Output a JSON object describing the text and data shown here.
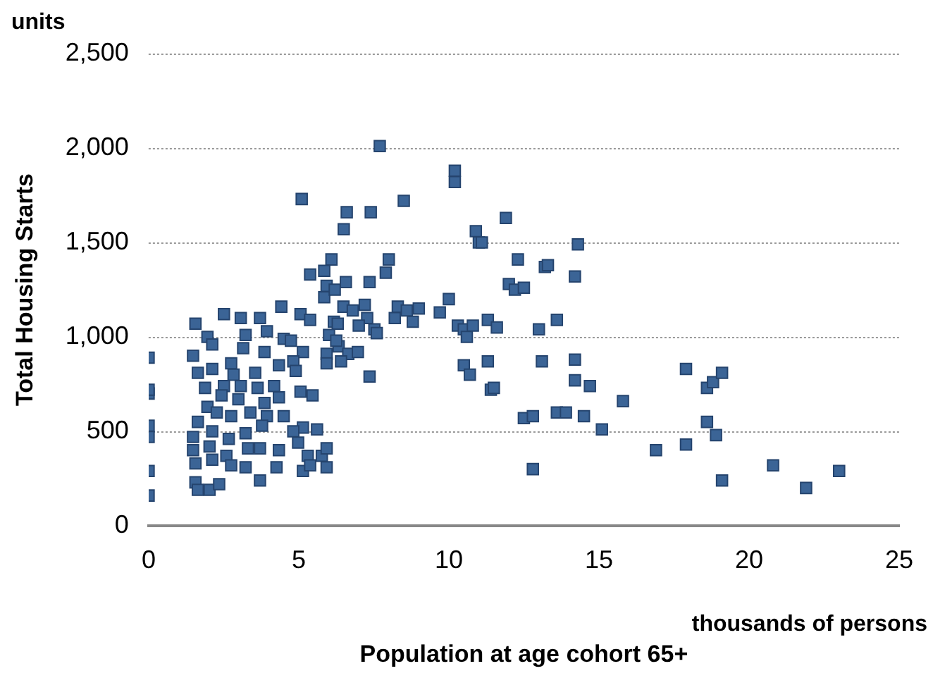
{
  "chart_data": {
    "type": "scatter",
    "xlabel": "Population at age cohort 65+",
    "ylabel": "Total Housing Starts",
    "annotations": [
      "units",
      "thousands of persons"
    ],
    "xlim": [
      0,
      25
    ],
    "xticks": [
      0,
      5,
      10,
      15,
      20,
      25
    ],
    "ylim": [
      0,
      2500
    ],
    "yticks": [
      {
        "value": 0,
        "label": "0"
      },
      {
        "value": 500,
        "label": "500"
      },
      {
        "value": 1000,
        "label": "1,000"
      },
      {
        "value": 1500,
        "label": "1,500"
      },
      {
        "value": 2000,
        "label": "2,000"
      },
      {
        "value": 2500,
        "label": "2,500"
      }
    ],
    "grid": "y",
    "marker": "square",
    "legend": false,
    "series": [
      {
        "color": "#3b6496",
        "x": [
          0,
          0,
          0,
          0,
          0,
          0,
          0,
          1.56,
          2.51,
          3.07,
          3.71,
          4.42,
          5.06,
          5.38,
          1.96,
          3.23,
          3.94,
          4.5,
          4.74,
          5.14,
          5.93,
          1.48,
          2.12,
          2.75,
          3.15,
          3.86,
          4.82,
          5.93,
          6.33,
          6.65,
          6.97,
          1.64,
          2.12,
          2.83,
          3.55,
          4.34,
          4.9,
          1.88,
          2.51,
          3.07,
          3.63,
          4.18,
          5.06,
          5.46,
          1.96,
          2.43,
          2.99,
          3.86,
          4.34,
          1.64,
          2.27,
          2.75,
          3.39,
          3.94,
          4.5,
          5.14,
          5.61,
          1.48,
          2.12,
          2.67,
          3.23,
          3.78,
          4.82,
          1.48,
          2.03,
          2.59,
          3.31,
          3.71,
          4.34,
          4.98,
          5.3,
          5.77,
          5.93,
          1.56,
          2.12,
          2.75,
          3.23,
          4.26,
          5.14,
          5.38,
          5.93,
          1.56,
          2.03,
          2.35,
          3.71,
          1.64,
          5.38,
          5.85,
          5.93,
          5.85,
          6.09,
          6.57,
          7.36,
          7.2,
          6.49,
          7.28,
          7.52,
          6.17,
          6.01,
          6.25,
          6.41,
          7.36,
          9.0,
          8.8,
          8.5,
          8.3,
          8.2,
          8.0,
          7.9,
          7.7,
          7.4,
          7.6,
          8.6,
          7.0,
          6.8,
          6.6,
          6.5,
          6.3,
          6.2,
          5.1,
          9.7,
          10.0,
          10.2,
          10.2,
          10.3,
          10.5,
          10.5,
          10.6,
          10.7,
          10.8,
          10.9,
          11.0,
          11.1,
          11.3,
          11.3,
          11.4,
          11.5,
          11.6,
          11.9,
          12.0,
          12.2,
          12.3,
          12.5,
          12.5,
          12.8,
          12.8,
          13.0,
          13.1,
          13.2,
          13.3,
          13.6,
          13.6,
          13.9,
          14.2,
          14.2,
          14.2,
          14.3,
          14.5,
          14.7,
          15.1,
          15.8,
          16.9,
          17.9,
          17.9,
          18.6,
          18.6,
          18.8,
          18.9,
          19.1,
          19.1,
          20.8,
          21.9,
          23.0
        ],
        "values": [
          160,
          290,
          470,
          530,
          700,
          720,
          890,
          1070,
          1120,
          1100,
          1100,
          1160,
          1120,
          1090,
          1000,
          1010,
          1030,
          990,
          980,
          920,
          910,
          900,
          960,
          860,
          940,
          920,
          870,
          860,
          950,
          910,
          920,
          810,
          830,
          800,
          810,
          850,
          820,
          730,
          740,
          740,
          730,
          740,
          710,
          690,
          630,
          690,
          670,
          650,
          680,
          550,
          600,
          580,
          600,
          580,
          580,
          520,
          510,
          470,
          500,
          460,
          490,
          530,
          500,
          400,
          420,
          370,
          410,
          410,
          400,
          440,
          370,
          370,
          410,
          330,
          350,
          320,
          310,
          310,
          290,
          320,
          310,
          230,
          190,
          220,
          240,
          190,
          1330,
          1350,
          1270,
          1210,
          1410,
          1290,
          1290,
          1170,
          1160,
          1100,
          1040,
          1080,
          1010,
          980,
          870,
          790,
          1150,
          1080,
          1720,
          1160,
          1100,
          1410,
          1340,
          2010,
          1660,
          1020,
          1140,
          1060,
          1140,
          1660,
          1570,
          1070,
          1250,
          1730,
          1130,
          1200,
          1820,
          1880,
          1060,
          850,
          1040,
          1000,
          800,
          1060,
          1560,
          1500,
          1500,
          1090,
          870,
          720,
          730,
          1050,
          1630,
          1280,
          1250,
          1410,
          570,
          1260,
          300,
          580,
          1040,
          870,
          1370,
          1380,
          600,
          1090,
          600,
          770,
          880,
          1320,
          1490,
          580,
          740,
          510,
          660,
          400,
          430,
          830,
          730,
          550,
          760,
          480,
          810,
          240,
          320,
          200,
          290
        ]
      }
    ]
  }
}
